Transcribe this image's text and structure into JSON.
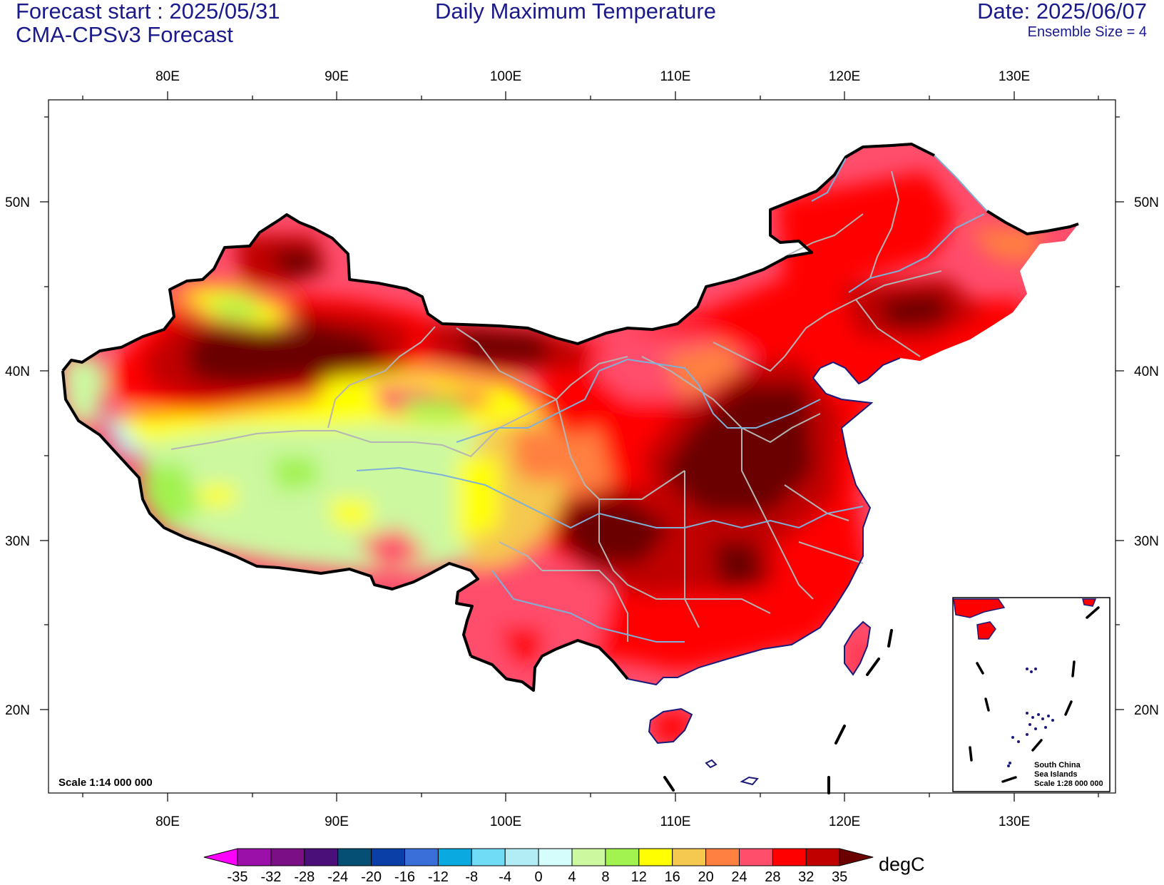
{
  "header": {
    "forecast_start": "Forecast start : 2025/05/31",
    "model": "CMA-CPSv3 Forecast",
    "title": "Daily Maximum Temperature",
    "date": "Date: 2025/06/07",
    "ensemble": "Ensemble Size = 4"
  },
  "axes": {
    "lon_labels": [
      "80E",
      "90E",
      "100E",
      "110E",
      "120E",
      "130E"
    ],
    "lat_labels": [
      "20N",
      "30N",
      "40N",
      "50N"
    ]
  },
  "scale_text": "Scale 1:14 000 000",
  "inset": {
    "line1": "South China",
    "line2": "Sea Islands",
    "line3": "Scale 1:28 000 000"
  },
  "colorbar": {
    "unit": "degC",
    "levels": [
      "-35",
      "-32",
      "-28",
      "-24",
      "-20",
      "-16",
      "-12",
      "-8",
      "-4",
      "0",
      "4",
      "8",
      "12",
      "16",
      "20",
      "24",
      "28",
      "32",
      "35"
    ],
    "colors": [
      "#ff00ff",
      "#9a10a8",
      "#7a0f86",
      "#4b0f7a",
      "#054e74",
      "#0a3fa8",
      "#3a6ed8",
      "#0aaae0",
      "#70dcf6",
      "#b2ecf4",
      "#d4fdfb",
      "#ccf8a0",
      "#a2f250",
      "#ffff00",
      "#f5c850",
      "#ff8040",
      "#ff4d6c",
      "#ff0000",
      "#c00000",
      "#6b0000"
    ]
  },
  "map_colors": {
    "background": "#ffffff",
    "coast": "#1a1a7a",
    "rivers": "#7fb0d8",
    "provinces": "#b4b4b4",
    "border": "#000000"
  }
}
